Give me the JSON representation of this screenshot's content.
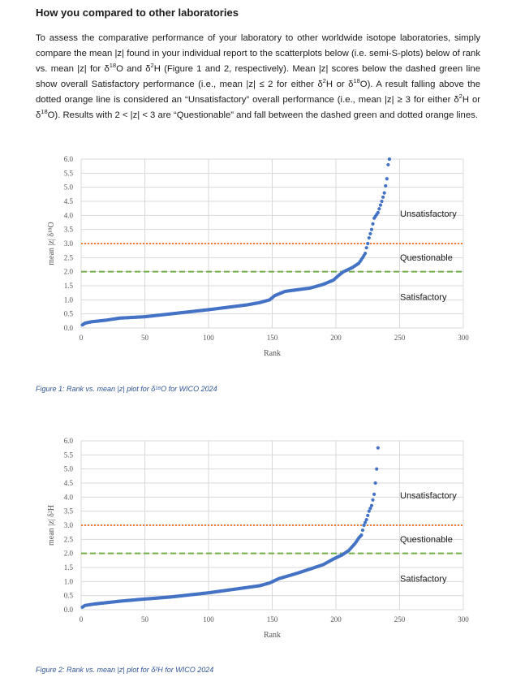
{
  "heading": "How you compared to other laboratories",
  "paragraph": "To assess the comparative performance of your laboratory to other worldwide isotope laboratories, simply compare the mean |z| found in your individual report to the scatterplots below (i.e. semi-S-plots) below of rank vs. mean |z| for δ¹⁸O and δ²H (Figure 1 and 2, respectively). Mean |z| scores below the dashed green line show overall Satisfactory performance (i.e., mean |z| ≤ 2 for either δ²H or δ¹⁸O). A result falling above the dotted orange line is considered an “Unsatisfactory” overall performance (i.e., mean |z| ≥ 3 for either δ²H or δ¹⁸O). Results with 2 < |z| < 3 are “Questionable” and fall between the dashed green and dotted orange lines.",
  "colors": {
    "points": "#4472c4",
    "satisfactory_line": "#70ad47",
    "unsatisfactory_line": "#ed7d31",
    "grid": "#d9d9d9",
    "caption": "#2f5597"
  },
  "chart_data": [
    {
      "type": "scatter",
      "caption": "Figure 1: Rank vs. mean |z| plot for δ¹⁸O for WICO 2024",
      "xlabel": "Rank",
      "ylabel": "mean |z| δ¹⁸O",
      "xlim": [
        0,
        300
      ],
      "ylim": [
        0,
        6
      ],
      "x_ticks": [
        "0",
        "50",
        "100",
        "150",
        "200",
        "250",
        "300"
      ],
      "y_ticks": [
        "0.0",
        "0.5",
        "1.0",
        "1.5",
        "2.0",
        "2.5",
        "3.0",
        "3.5",
        "4.0",
        "4.5",
        "5.0",
        "5.5",
        "6.0"
      ],
      "grid": true,
      "thresholds": [
        {
          "label": "Satisfactory",
          "value": 2,
          "style": "dashed",
          "color": "#70ad47"
        },
        {
          "label": "Unsatisfactory",
          "value": 3,
          "style": "dotted",
          "color": "#ed7d31"
        }
      ],
      "zone_labels": [
        "Unsatisfactory",
        "Questionable",
        "Satisfactory"
      ],
      "n_points": 242,
      "curve_knots": [
        [
          1,
          0.11
        ],
        [
          3,
          0.17
        ],
        [
          8,
          0.22
        ],
        [
          20,
          0.28
        ],
        [
          30,
          0.35
        ],
        [
          50,
          0.4
        ],
        [
          70,
          0.5
        ],
        [
          100,
          0.65
        ],
        [
          130,
          0.82
        ],
        [
          140,
          0.9
        ],
        [
          148,
          1.0
        ],
        [
          152,
          1.15
        ],
        [
          160,
          1.3
        ],
        [
          180,
          1.42
        ],
        [
          190,
          1.55
        ],
        [
          198,
          1.7
        ],
        [
          203,
          1.9
        ],
        [
          206,
          2.0
        ],
        [
          213,
          2.15
        ],
        [
          218,
          2.3
        ],
        [
          221,
          2.5
        ],
        [
          223,
          2.65
        ],
        [
          224,
          2.85
        ],
        [
          225,
          3.0
        ],
        [
          226,
          3.2
        ],
        [
          228,
          3.5
        ],
        [
          230,
          3.9
        ],
        [
          233,
          4.1
        ],
        [
          236,
          4.5
        ],
        [
          238,
          4.8
        ],
        [
          240,
          5.3
        ],
        [
          241,
          5.8
        ],
        [
          242,
          6.0
        ]
      ]
    },
    {
      "type": "scatter",
      "caption": "Figure 2: Rank vs. mean |z| plot for δ²H for WICO 2024",
      "xlabel": "Rank",
      "ylabel": "mean |z| δ²H",
      "xlim": [
        0,
        300
      ],
      "ylim": [
        0,
        6
      ],
      "x_ticks": [
        "0",
        "50",
        "100",
        "150",
        "200",
        "250",
        "300"
      ],
      "y_ticks": [
        "0.0",
        "0.5",
        "1.0",
        "1.5",
        "2.0",
        "2.5",
        "3.0",
        "3.5",
        "4.0",
        "4.5",
        "5.0",
        "5.5",
        "6.0"
      ],
      "grid": true,
      "thresholds": [
        {
          "label": "Satisfactory",
          "value": 2,
          "style": "dashed",
          "color": "#70ad47"
        },
        {
          "label": "Unsatisfactory",
          "value": 3,
          "style": "dotted",
          "color": "#ed7d31"
        }
      ],
      "zone_labels": [
        "Unsatisfactory",
        "Questionable",
        "Satisfactory"
      ],
      "n_points": 233,
      "curve_knots": [
        [
          1,
          0.09
        ],
        [
          3,
          0.15
        ],
        [
          10,
          0.2
        ],
        [
          30,
          0.3
        ],
        [
          50,
          0.38
        ],
        [
          70,
          0.45
        ],
        [
          100,
          0.6
        ],
        [
          140,
          0.85
        ],
        [
          148,
          0.95
        ],
        [
          155,
          1.1
        ],
        [
          170,
          1.3
        ],
        [
          180,
          1.45
        ],
        [
          190,
          1.6
        ],
        [
          198,
          1.8
        ],
        [
          205,
          1.95
        ],
        [
          210,
          2.1
        ],
        [
          215,
          2.35
        ],
        [
          218,
          2.55
        ],
        [
          220,
          2.65
        ],
        [
          222,
          3.0
        ],
        [
          224,
          3.2
        ],
        [
          226,
          3.5
        ],
        [
          228,
          3.7
        ],
        [
          230,
          4.1
        ],
        [
          231,
          4.5
        ],
        [
          232,
          5.0
        ],
        [
          233,
          5.75
        ]
      ]
    }
  ]
}
